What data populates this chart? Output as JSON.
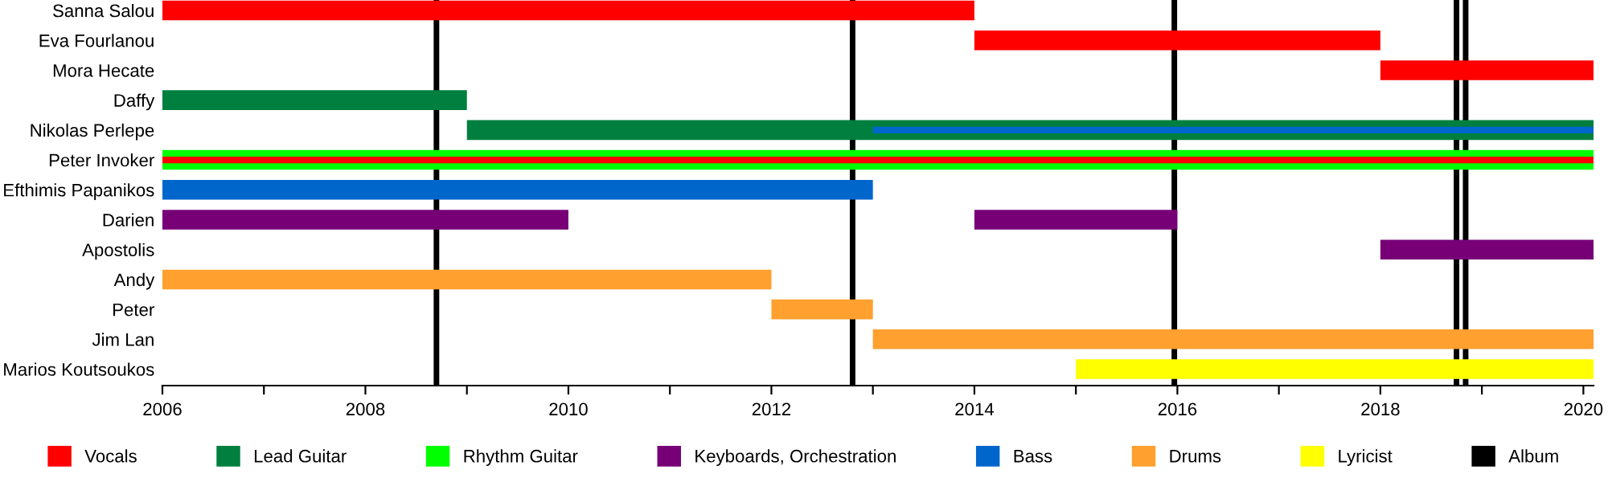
{
  "chart_data": {
    "type": "bar",
    "orientation": "horizontal",
    "categories": [
      "Sanna Salou",
      "Eva Fourlanou",
      "Mora Hecate",
      "Daffy",
      "Nikolas Perlepe",
      "Peter Invoker",
      "Efthimis Papanikos",
      "Darien",
      "Apostolis",
      "Andy",
      "Peter",
      "Jim Lan",
      "Marios Koutsoukos"
    ],
    "series": [
      {
        "name": "Vocals",
        "color": "#ff0000",
        "values": [
          8,
          4,
          2.1,
          null,
          null,
          null,
          null,
          null,
          null,
          null,
          null,
          null,
          null
        ],
        "base": [
          2006,
          2014,
          2018,
          null,
          null,
          null,
          null,
          null,
          null,
          null,
          null,
          null,
          null
        ]
      },
      {
        "name": "Lead Guitar",
        "color": "#007f3f",
        "values": [
          null,
          null,
          null,
          3,
          11.1,
          null,
          null,
          null,
          null,
          null,
          null,
          null,
          null
        ],
        "base": [
          null,
          null,
          null,
          2006,
          2009,
          null,
          null,
          null,
          null,
          null,
          null,
          null,
          null
        ]
      },
      {
        "name": "Rhythm Guitar",
        "color": "#00ff00",
        "values": [
          null,
          null,
          null,
          null,
          null,
          14.1,
          null,
          null,
          null,
          null,
          null,
          null,
          null
        ],
        "base": [
          null,
          null,
          null,
          null,
          null,
          2006,
          null,
          null,
          null,
          null,
          null,
          null,
          null
        ]
      },
      {
        "name": "Keyboards, Orchestration",
        "color": "#770077",
        "values": [
          null,
          null,
          null,
          null,
          null,
          null,
          null,
          4,
          2.1,
          null,
          null,
          null,
          null
        ],
        "base": [
          null,
          null,
          null,
          null,
          null,
          null,
          null,
          2006,
          2018,
          null,
          null,
          null,
          null
        ]
      },
      {
        "name": "Bass",
        "color": "#0066cc",
        "values": [
          null,
          null,
          null,
          null,
          7.1,
          null,
          7,
          null,
          null,
          null,
          null,
          null,
          null
        ],
        "base": [
          null,
          null,
          null,
          null,
          2013,
          null,
          2006,
          null,
          null,
          null,
          null,
          null,
          null
        ]
      },
      {
        "name": "Drums",
        "color": "#ffa02f",
        "values": [
          null,
          null,
          null,
          null,
          null,
          null,
          null,
          null,
          null,
          6,
          1,
          7.1,
          null
        ],
        "base": [
          null,
          null,
          null,
          null,
          null,
          null,
          null,
          null,
          null,
          2006,
          2012,
          2013,
          null
        ]
      },
      {
        "name": "Lyricist",
        "color": "#ffff00",
        "values": [
          null,
          null,
          null,
          null,
          null,
          null,
          null,
          null,
          null,
          null,
          null,
          null,
          5.1
        ],
        "base": [
          null,
          null,
          null,
          null,
          null,
          null,
          null,
          null,
          null,
          null,
          null,
          null,
          2015
        ]
      },
      {
        "color": "#ff0000",
        "values": [
          null,
          null,
          null,
          null,
          null,
          14.1,
          null,
          null,
          null,
          null,
          null,
          null,
          null
        ],
        "base": [
          null,
          null,
          null,
          null,
          null,
          2006,
          null,
          null,
          null,
          null,
          null,
          null,
          null
        ]
      },
      {
        "color": "#770077",
        "values": [
          null,
          null,
          null,
          null,
          null,
          null,
          null,
          2,
          null,
          null,
          null,
          null,
          null
        ],
        "base": [
          null,
          null,
          null,
          null,
          null,
          null,
          null,
          2014,
          null,
          null,
          null,
          null,
          null
        ]
      }
    ],
    "xlim": [
      2006,
      2020.1
    ],
    "xticks": [
      2006,
      {
        "value": 2007,
        "label": null
      },
      2008,
      {
        "value": 2009,
        "label": null
      },
      2010,
      {
        "value": 2011,
        "label": null
      },
      2012,
      {
        "value": 2013,
        "label": null
      },
      2014,
      {
        "value": 2015,
        "label": null
      },
      2016,
      {
        "value": 2017,
        "label": null
      },
      2018,
      {
        "value": 2019,
        "label": null
      },
      2020
    ],
    "ref_lines": [
      {
        "axis": "x",
        "value": 2008.7,
        "label": "Album",
        "color": "#000000"
      },
      {
        "axis": "x",
        "value": 2012.8,
        "color": "#000000"
      },
      {
        "axis": "x",
        "value": 2015.97,
        "color": "#000000"
      },
      {
        "axis": "x",
        "value": 2018.75,
        "color": "#000000"
      },
      {
        "axis": "x",
        "value": 2018.84,
        "color": "#000000"
      }
    ],
    "grid": false,
    "legend": "bottom"
  }
}
